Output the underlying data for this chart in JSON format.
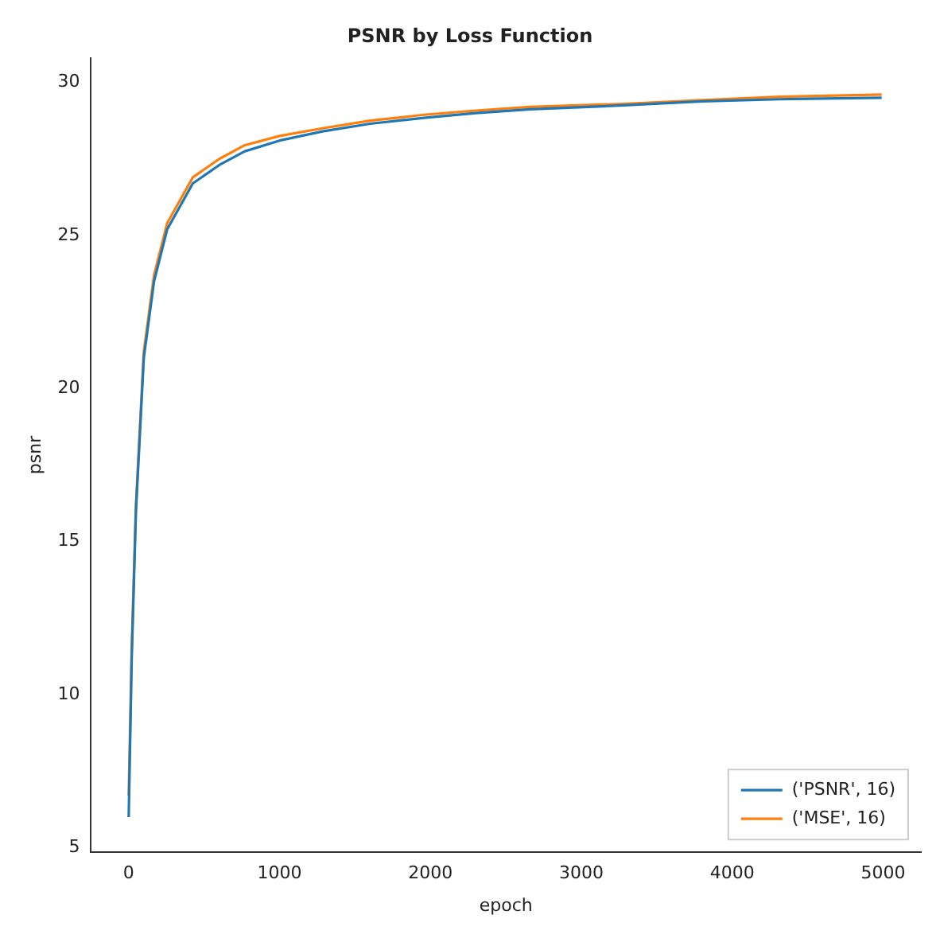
{
  "chart_data": {
    "type": "line",
    "title": "PSNR by Loss Function",
    "xlabel": "epoch",
    "ylabel": "psnr",
    "series": [
      {
        "name": "('PSNR', 16)",
        "color": "#1f77b4",
        "x": [
          0,
          20,
          48,
          100,
          168,
          255,
          425,
          600,
          770,
          1000,
          1285,
          1600,
          1970,
          2300,
          2660,
          3280,
          3800,
          4310,
          4990
        ],
        "values": [
          6.0,
          11.2,
          16.0,
          21.0,
          23.5,
          25.2,
          26.7,
          27.3,
          27.75,
          28.1,
          28.4,
          28.65,
          28.85,
          29.0,
          29.12,
          29.25,
          29.38,
          29.45,
          29.5
        ]
      },
      {
        "name": "('MSE', 16)",
        "color": "#ff7f0e",
        "x": [
          0,
          20,
          48,
          100,
          168,
          255,
          425,
          600,
          770,
          1000,
          1285,
          1600,
          1970,
          2300,
          2660,
          3280,
          3800,
          4310,
          4990
        ],
        "values": [
          6.7,
          11.5,
          16.2,
          21.2,
          23.7,
          25.4,
          26.9,
          27.5,
          27.95,
          28.25,
          28.5,
          28.75,
          28.95,
          29.08,
          29.2,
          29.3,
          29.42,
          29.53,
          29.6
        ]
      }
    ],
    "xlim": [
      -250,
      5250
    ],
    "xticks": [
      0,
      1000,
      2000,
      3000,
      4000,
      5000
    ],
    "ylim": [
      4.85,
      30.8
    ],
    "yticks": [
      5,
      10,
      15,
      20,
      25,
      30
    ],
    "grid": false,
    "legend": "bottom right",
    "marker": "none",
    "line_style": "solid"
  }
}
